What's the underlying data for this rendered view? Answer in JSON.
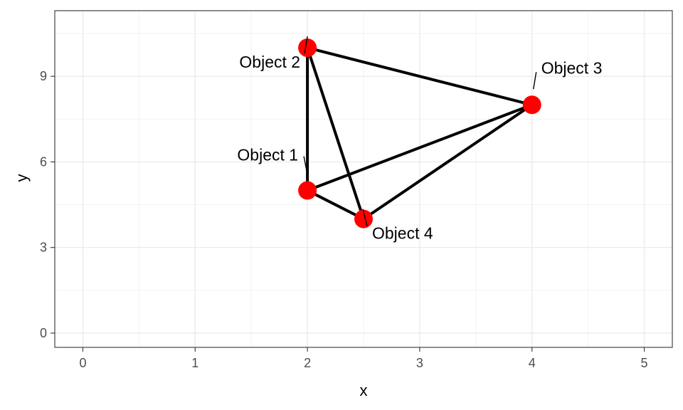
{
  "chart_data": {
    "type": "scatter",
    "title": "",
    "xlabel": "x",
    "ylabel": "y",
    "xlim": [
      -0.25,
      5.25
    ],
    "ylim": [
      -0.5,
      11.3
    ],
    "x_ticks": [
      0,
      1,
      2,
      3,
      4,
      5
    ],
    "x_tick_labels": [
      "0",
      "1",
      "2",
      "3",
      "4",
      "5"
    ],
    "y_ticks": [
      0,
      3,
      6,
      9
    ],
    "y_tick_labels": [
      "0",
      "3",
      "6",
      "9"
    ],
    "grid": true,
    "points": [
      {
        "label": "Object 1",
        "x": 2,
        "y": 5
      },
      {
        "label": "Object 2",
        "x": 2,
        "y": 10
      },
      {
        "label": "Object 3",
        "x": 4,
        "y": 8
      },
      {
        "label": "Object 4",
        "x": 2.5,
        "y": 4
      }
    ],
    "edges": [
      [
        "Object 1",
        "Object 2"
      ],
      [
        "Object 1",
        "Object 3"
      ],
      [
        "Object 1",
        "Object 4"
      ],
      [
        "Object 2",
        "Object 3"
      ],
      [
        "Object 2",
        "Object 4"
      ],
      [
        "Object 3",
        "Object 4"
      ]
    ],
    "point_color": "#ff0000",
    "edge_color": "#000000",
    "label_position_words": [
      "upper-left",
      "upper-left",
      "upper-right",
      "lower-right"
    ]
  }
}
